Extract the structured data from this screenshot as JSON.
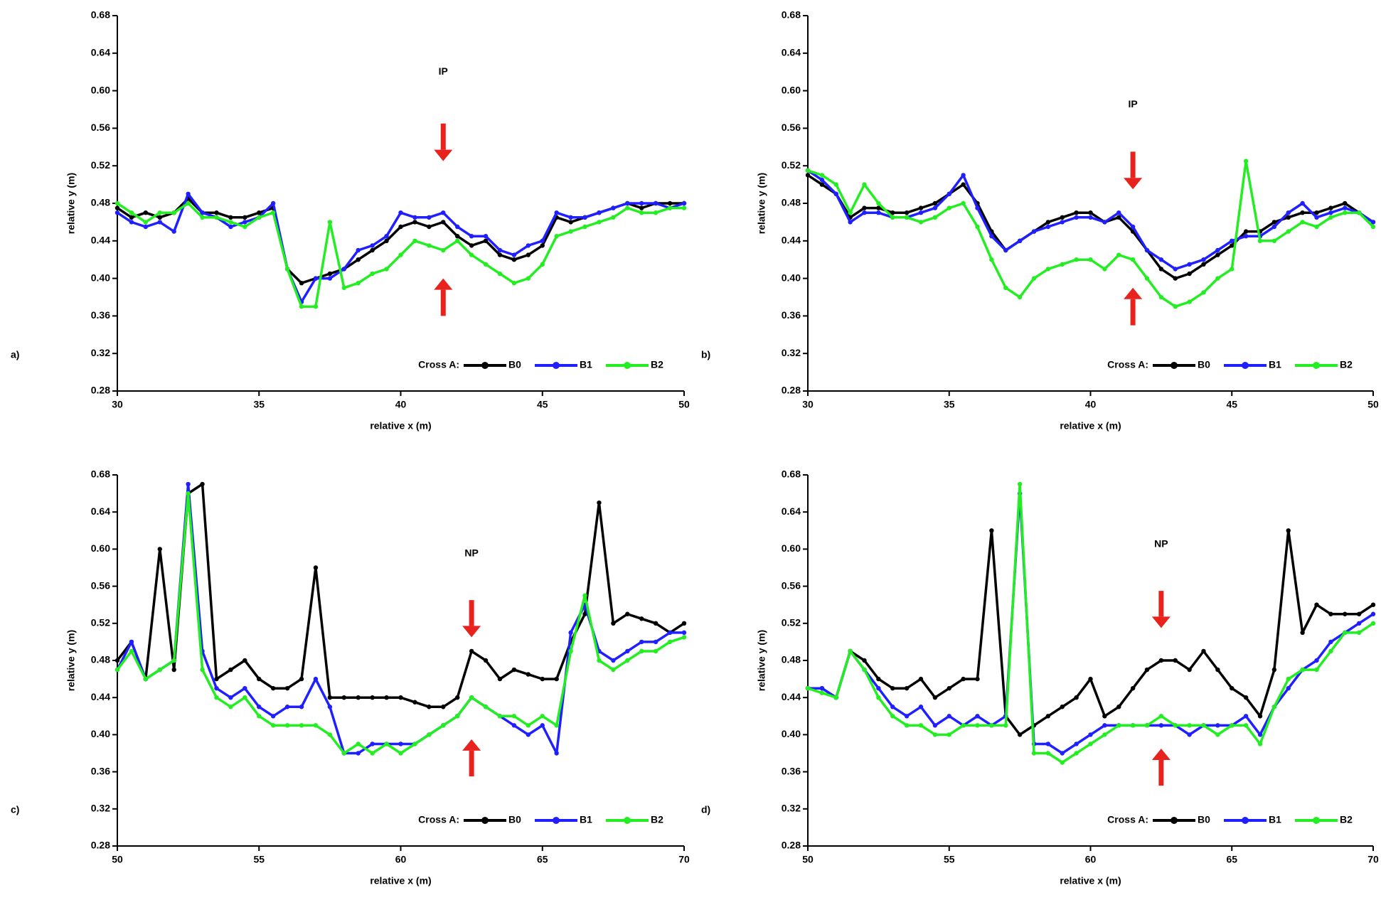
{
  "chart_data": [
    {
      "type": "line",
      "panel_label": "a)",
      "annotation": "IP",
      "legend_title": "Cross A:",
      "xlabel": "relative x (m)",
      "ylabel": "relative y (m)",
      "x": [
        30,
        30.5,
        31,
        31.5,
        32,
        32.5,
        33,
        33.5,
        34,
        34.5,
        35,
        35.5,
        36,
        36.5,
        37,
        37.5,
        38,
        38.5,
        39,
        39.5,
        40,
        40.5,
        41,
        41.5,
        42,
        42.5,
        43,
        43.5,
        44,
        44.5,
        45,
        45.5,
        46,
        46.5,
        47,
        47.5,
        48,
        48.5,
        49,
        49.5,
        50
      ],
      "series": [
        {
          "name": "B0",
          "color": "#000000",
          "values": [
            0.475,
            0.465,
            0.47,
            0.465,
            0.47,
            0.485,
            0.47,
            0.47,
            0.465,
            0.465,
            0.47,
            0.475,
            0.41,
            0.395,
            0.4,
            0.405,
            0.41,
            0.42,
            0.43,
            0.44,
            0.455,
            0.46,
            0.455,
            0.46,
            0.445,
            0.435,
            0.44,
            0.425,
            0.42,
            0.425,
            0.435,
            0.465,
            0.46,
            0.465,
            0.47,
            0.475,
            0.48,
            0.475,
            0.48,
            0.48,
            0.48
          ]
        },
        {
          "name": "B1",
          "color": "#1f1fff",
          "values": [
            0.47,
            0.46,
            0.455,
            0.46,
            0.45,
            0.49,
            0.47,
            0.465,
            0.455,
            0.46,
            0.465,
            0.48,
            0.41,
            0.375,
            0.4,
            0.4,
            0.41,
            0.43,
            0.435,
            0.445,
            0.47,
            0.465,
            0.465,
            0.47,
            0.455,
            0.445,
            0.445,
            0.43,
            0.425,
            0.435,
            0.44,
            0.47,
            0.465,
            0.465,
            0.47,
            0.475,
            0.48,
            0.48,
            0.48,
            0.475,
            0.48
          ]
        },
        {
          "name": "B2",
          "color": "#22ee22",
          "values": [
            0.48,
            0.47,
            0.46,
            0.47,
            0.47,
            0.48,
            0.465,
            0.465,
            0.46,
            0.455,
            0.465,
            0.47,
            0.41,
            0.37,
            0.37,
            0.46,
            0.39,
            0.395,
            0.405,
            0.41,
            0.425,
            0.44,
            0.435,
            0.43,
            0.44,
            0.425,
            0.415,
            0.405,
            0.395,
            0.4,
            0.415,
            0.445,
            0.45,
            0.455,
            0.46,
            0.465,
            0.475,
            0.47,
            0.47,
            0.475,
            0.475
          ]
        }
      ],
      "xlim": [
        30,
        50
      ],
      "ylim": [
        0.28,
        0.68
      ],
      "xticks": [
        30,
        35,
        40,
        45,
        50
      ],
      "yticks": [
        0.28,
        0.32,
        0.36,
        {
          "value": 0.4,
          "label": "0.40"
        },
        0.44,
        0.48,
        0.52,
        0.56,
        {
          "value": 0.6,
          "label": "0.60"
        },
        0.64,
        0.68
      ]
    },
    {
      "type": "line",
      "panel_label": "b)",
      "annotation": "IP",
      "legend_title": "Cross A:",
      "xlabel": "relative x (m)",
      "ylabel": "relative y (m)",
      "x": [
        30,
        30.5,
        31,
        31.5,
        32,
        32.5,
        33,
        33.5,
        34,
        34.5,
        35,
        35.5,
        36,
        36.5,
        37,
        37.5,
        38,
        38.5,
        39,
        39.5,
        40,
        40.5,
        41,
        41.5,
        42,
        42.5,
        43,
        43.5,
        44,
        44.5,
        45,
        45.5,
        46,
        46.5,
        47,
        47.5,
        48,
        48.5,
        49,
        49.5,
        50
      ],
      "series": [
        {
          "name": "B0",
          "color": "#000000",
          "values": [
            0.51,
            0.5,
            0.49,
            0.465,
            0.475,
            0.475,
            0.47,
            0.47,
            0.475,
            0.48,
            0.49,
            0.5,
            0.48,
            0.45,
            0.43,
            0.44,
            0.45,
            0.46,
            0.465,
            0.47,
            0.47,
            0.46,
            0.465,
            0.45,
            0.43,
            0.41,
            0.4,
            0.405,
            0.415,
            0.425,
            0.435,
            0.45,
            0.45,
            0.46,
            0.465,
            0.47,
            0.47,
            0.475,
            0.48,
            0.47,
            0.46
          ]
        },
        {
          "name": "B1",
          "color": "#1f1fff",
          "values": [
            0.515,
            0.505,
            0.49,
            0.46,
            0.47,
            0.47,
            0.465,
            0.465,
            0.47,
            0.475,
            0.49,
            0.51,
            0.475,
            0.445,
            0.43,
            0.44,
            0.45,
            0.455,
            0.46,
            0.465,
            0.465,
            0.46,
            0.47,
            0.455,
            0.43,
            0.42,
            0.41,
            0.415,
            0.42,
            0.43,
            0.44,
            0.445,
            0.445,
            0.455,
            0.47,
            0.48,
            0.465,
            0.47,
            0.475,
            0.47,
            0.46
          ]
        },
        {
          "name": "B2",
          "color": "#22ee22",
          "values": [
            0.515,
            0.51,
            0.5,
            0.47,
            0.5,
            0.48,
            0.465,
            0.465,
            0.46,
            0.465,
            0.475,
            0.48,
            0.455,
            0.42,
            0.39,
            0.38,
            0.4,
            0.41,
            0.415,
            0.42,
            0.42,
            0.41,
            0.425,
            0.42,
            0.4,
            0.38,
            0.37,
            0.375,
            0.385,
            0.4,
            0.41,
            0.525,
            0.44,
            0.44,
            0.45,
            0.46,
            0.455,
            0.465,
            0.47,
            0.47,
            0.455
          ]
        }
      ],
      "xlim": [
        30,
        50
      ],
      "ylim": [
        0.28,
        0.68
      ],
      "xticks": [
        30,
        35,
        40,
        45,
        50
      ],
      "yticks": [
        0.28,
        0.32,
        0.36,
        {
          "value": 0.4,
          "label": "0.40"
        },
        0.44,
        0.48,
        0.52,
        0.56,
        {
          "value": 0.6,
          "label": "0.60"
        },
        0.64,
        0.68
      ]
    },
    {
      "type": "line",
      "panel_label": "c)",
      "annotation": "NP",
      "legend_title": "Cross A:",
      "xlabel": "relative x (m)",
      "ylabel": "relative y (m)",
      "x": [
        50,
        50.5,
        51,
        51.5,
        52,
        52.5,
        53,
        53.5,
        54,
        54.5,
        55,
        55.5,
        56,
        56.5,
        57,
        57.5,
        58,
        58.5,
        59,
        59.5,
        60,
        60.5,
        61,
        61.5,
        62,
        62.5,
        63,
        63.5,
        64,
        64.5,
        65,
        65.5,
        66,
        66.5,
        67,
        67.5,
        68,
        68.5,
        69,
        69.5,
        70
      ],
      "series": [
        {
          "name": "B0",
          "color": "#000000",
          "values": [
            0.48,
            0.5,
            0.46,
            0.6,
            0.47,
            0.66,
            0.67,
            0.46,
            0.47,
            0.48,
            0.46,
            0.45,
            0.45,
            0.46,
            0.58,
            0.44,
            0.44,
            0.44,
            0.44,
            0.44,
            0.44,
            0.435,
            0.43,
            0.43,
            0.44,
            0.49,
            0.48,
            0.46,
            0.47,
            0.465,
            0.46,
            0.46,
            0.5,
            0.53,
            0.65,
            0.52,
            0.53,
            0.525,
            0.52,
            0.51,
            0.52
          ]
        },
        {
          "name": "B1",
          "color": "#1f1fff",
          "values": [
            0.47,
            0.5,
            0.46,
            0.47,
            0.48,
            0.67,
            0.49,
            0.45,
            0.44,
            0.45,
            0.43,
            0.42,
            0.43,
            0.43,
            0.46,
            0.43,
            0.38,
            0.38,
            0.39,
            0.39,
            0.39,
            0.39,
            0.4,
            0.41,
            0.42,
            0.44,
            0.43,
            0.42,
            0.41,
            0.4,
            0.41,
            0.38,
            0.51,
            0.54,
            0.49,
            0.48,
            0.49,
            0.5,
            0.5,
            0.51,
            0.51
          ]
        },
        {
          "name": "B2",
          "color": "#22ee22",
          "values": [
            0.47,
            0.49,
            0.46,
            0.47,
            0.48,
            0.66,
            0.47,
            0.44,
            0.43,
            0.44,
            0.42,
            0.41,
            0.41,
            0.41,
            0.41,
            0.4,
            0.38,
            0.39,
            0.38,
            0.39,
            0.38,
            0.39,
            0.4,
            0.41,
            0.42,
            0.44,
            0.43,
            0.42,
            0.42,
            0.41,
            0.42,
            0.41,
            0.49,
            0.55,
            0.48,
            0.47,
            0.48,
            0.49,
            0.49,
            0.5,
            0.505
          ]
        }
      ],
      "xlim": [
        50,
        70
      ],
      "ylim": [
        0.28,
        0.68
      ],
      "xticks": [
        50,
        55,
        60,
        65,
        70
      ],
      "yticks": [
        0.28,
        0.32,
        0.36,
        {
          "value": 0.4,
          "label": "0.40"
        },
        0.44,
        0.48,
        0.52,
        0.56,
        {
          "value": 0.6,
          "label": "0.60"
        },
        0.64,
        0.68
      ]
    },
    {
      "type": "line",
      "panel_label": "d)",
      "annotation": "NP",
      "legend_title": "Cross A:",
      "xlabel": "relative x (m)",
      "ylabel": "relative y (m)",
      "x": [
        50,
        50.5,
        51,
        51.5,
        52,
        52.5,
        53,
        53.5,
        54,
        54.5,
        55,
        55.5,
        56,
        56.5,
        57,
        57.5,
        58,
        58.5,
        59,
        59.5,
        60,
        60.5,
        61,
        61.5,
        62,
        62.5,
        63,
        63.5,
        64,
        64.5,
        65,
        65.5,
        66,
        66.5,
        67,
        67.5,
        68,
        68.5,
        69,
        69.5,
        70
      ],
      "series": [
        {
          "name": "B0",
          "color": "#000000",
          "values": [
            0.45,
            0.45,
            0.44,
            0.49,
            0.48,
            0.46,
            0.45,
            0.45,
            0.46,
            0.44,
            0.45,
            0.46,
            0.46,
            0.62,
            0.42,
            0.4,
            0.41,
            0.42,
            0.43,
            0.44,
            0.46,
            0.42,
            0.43,
            0.45,
            0.47,
            0.48,
            0.48,
            0.47,
            0.49,
            0.47,
            0.45,
            0.44,
            0.42,
            0.47,
            0.62,
            0.51,
            0.54,
            0.53,
            0.53,
            0.53,
            0.54
          ]
        },
        {
          "name": "B1",
          "color": "#1f1fff",
          "values": [
            0.45,
            0.45,
            0.44,
            0.49,
            0.47,
            0.45,
            0.43,
            0.42,
            0.43,
            0.41,
            0.42,
            0.41,
            0.42,
            0.41,
            0.42,
            0.66,
            0.39,
            0.39,
            0.38,
            0.39,
            0.4,
            0.41,
            0.41,
            0.41,
            0.41,
            0.41,
            0.41,
            0.4,
            0.41,
            0.41,
            0.41,
            0.42,
            0.4,
            0.43,
            0.45,
            0.47,
            0.48,
            0.5,
            0.51,
            0.52,
            0.53
          ]
        },
        {
          "name": "B2",
          "color": "#22ee22",
          "values": [
            0.45,
            0.445,
            0.44,
            0.49,
            0.47,
            0.44,
            0.42,
            0.41,
            0.41,
            0.4,
            0.4,
            0.41,
            0.41,
            0.41,
            0.41,
            0.67,
            0.38,
            0.38,
            0.37,
            0.38,
            0.39,
            0.4,
            0.41,
            0.41,
            0.41,
            0.42,
            0.41,
            0.41,
            0.41,
            0.4,
            0.41,
            0.41,
            0.39,
            0.43,
            0.46,
            0.47,
            0.47,
            0.49,
            0.51,
            0.51,
            0.52
          ]
        }
      ],
      "xlim": [
        50,
        70
      ],
      "ylim": [
        0.28,
        0.68
      ],
      "xticks": [
        50,
        55,
        60,
        65,
        70
      ],
      "yticks": [
        0.28,
        0.32,
        0.36,
        {
          "value": 0.4,
          "label": "0.40"
        },
        0.44,
        0.48,
        0.52,
        0.56,
        {
          "value": 0.6,
          "label": "0.60"
        },
        0.64,
        0.68
      ]
    }
  ]
}
